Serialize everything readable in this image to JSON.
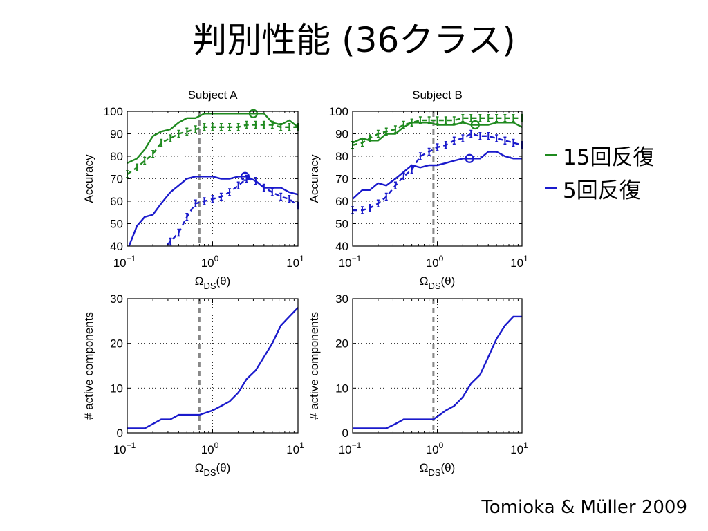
{
  "slide": {
    "title": "判別性能 (36クラス)",
    "citation": "Tomioka & Müller 2009"
  },
  "legend": [
    {
      "label": "15回反復",
      "color": "#1f8a1f"
    },
    {
      "label": "5回反復",
      "color": "#1a1acc"
    }
  ],
  "colors": {
    "green": "#1f8a1f",
    "blue": "#1a1acc",
    "threshold": "#888888"
  },
  "chart_data": [
    {
      "type": "line",
      "title": "Subject A",
      "xlabel": "Ω_DS(θ)",
      "ylabel": "Accuracy",
      "xscale": "log",
      "xlim": [
        0.1,
        10
      ],
      "ylim": [
        40,
        100
      ],
      "xticks": [
        "10^-1",
        "10^0",
        "10^1"
      ],
      "yticks": [
        40,
        50,
        60,
        70,
        80,
        90,
        100
      ],
      "threshold_x": 0.7,
      "grid": true,
      "series": [
        {
          "color": "green",
          "style": "solid",
          "x": [
            0.1,
            0.13,
            0.16,
            0.2,
            0.25,
            0.32,
            0.4,
            0.5,
            0.63,
            0.8,
            1.0,
            1.26,
            1.58,
            2.0,
            2.5,
            3.2,
            4.0,
            5.0,
            6.3,
            7.9,
            10.0
          ],
          "y": [
            77,
            79,
            83,
            89,
            91,
            92,
            95,
            97,
            97,
            99,
            99,
            99,
            99,
            99,
            99,
            99,
            99,
            95,
            94,
            96,
            93
          ],
          "marker": {
            "x": 3.0,
            "y": 99
          }
        },
        {
          "color": "green",
          "style": "dashed",
          "x": [
            0.1,
            0.13,
            0.16,
            0.2,
            0.25,
            0.32,
            0.4,
            0.5,
            0.63,
            0.8,
            1.0,
            1.26,
            1.58,
            2.0,
            2.5,
            3.2,
            4.0,
            5.0,
            6.3,
            7.9,
            10.0
          ],
          "y": [
            72,
            75,
            78,
            81,
            86,
            88,
            90,
            91,
            92,
            93,
            93,
            93,
            93,
            93,
            94,
            94,
            94,
            94,
            93,
            93,
            93
          ],
          "errorbars": true
        },
        {
          "color": "blue",
          "style": "solid",
          "x": [
            0.1,
            0.13,
            0.16,
            0.2,
            0.25,
            0.32,
            0.4,
            0.5,
            0.63,
            0.8,
            1.0,
            1.26,
            1.58,
            2.0,
            2.5,
            3.2,
            4.0,
            5.0,
            6.3,
            7.9,
            10.0
          ],
          "y": [
            38,
            49,
            53,
            54,
            59,
            64,
            67,
            70,
            71,
            71,
            71,
            70,
            70,
            71,
            71,
            69,
            66,
            66,
            66,
            64,
            63
          ],
          "marker": {
            "x": 2.4,
            "y": 71
          }
        },
        {
          "color": "blue",
          "style": "dashed",
          "x": [
            0.25,
            0.32,
            0.4,
            0.5,
            0.63,
            0.8,
            1.0,
            1.26,
            1.58,
            2.0,
            2.5,
            3.2,
            4.0,
            5.0,
            6.3,
            7.9,
            10.0
          ],
          "y": [
            38,
            42,
            46,
            53,
            59,
            60,
            61,
            62,
            64,
            67,
            70,
            69,
            66,
            64,
            62,
            61,
            58
          ],
          "errorbars": true
        }
      ]
    },
    {
      "type": "line",
      "title": "Subject B",
      "xlabel": "Ω_DS(θ)",
      "ylabel": "Accuracy",
      "xscale": "log",
      "xlim": [
        0.1,
        10
      ],
      "ylim": [
        40,
        100
      ],
      "xticks": [
        "10^-1",
        "10^0",
        "10^1"
      ],
      "yticks": [
        40,
        50,
        60,
        70,
        80,
        90,
        100
      ],
      "threshold_x": 0.9,
      "grid": true,
      "series": [
        {
          "color": "green",
          "style": "solid",
          "x": [
            0.1,
            0.13,
            0.16,
            0.2,
            0.25,
            0.32,
            0.4,
            0.5,
            0.63,
            0.8,
            1.0,
            1.26,
            1.58,
            2.0,
            2.5,
            3.2,
            4.0,
            5.0,
            6.3,
            7.9,
            10.0
          ],
          "y": [
            86,
            88,
            87,
            87,
            90,
            90,
            93,
            95,
            95,
            95,
            94,
            94,
            94,
            95,
            94,
            94,
            94,
            95,
            95,
            95,
            93
          ],
          "marker": {
            "x": 2.8,
            "y": 94
          }
        },
        {
          "color": "green",
          "style": "dashed",
          "x": [
            0.1,
            0.13,
            0.16,
            0.2,
            0.25,
            0.32,
            0.4,
            0.5,
            0.63,
            0.8,
            1.0,
            1.26,
            1.58,
            2.0,
            2.5,
            3.2,
            4.0,
            5.0,
            6.3,
            7.9,
            10.0
          ],
          "y": [
            85,
            86,
            88,
            90,
            91,
            92,
            94,
            95,
            96,
            96,
            96,
            96,
            96,
            97,
            97,
            97,
            97,
            97,
            97,
            97,
            97
          ],
          "errorbars": true
        },
        {
          "color": "blue",
          "style": "solid",
          "x": [
            0.1,
            0.13,
            0.16,
            0.2,
            0.25,
            0.32,
            0.4,
            0.5,
            0.63,
            0.8,
            1.0,
            1.26,
            1.58,
            2.0,
            2.5,
            3.2,
            4.0,
            5.0,
            6.3,
            7.9,
            10.0
          ],
          "y": [
            61,
            65,
            65,
            68,
            67,
            70,
            73,
            76,
            75,
            76,
            76,
            77,
            78,
            79,
            79,
            79,
            82,
            82,
            80,
            79,
            79
          ],
          "marker": {
            "x": 2.4,
            "y": 79
          }
        },
        {
          "color": "blue",
          "style": "dashed",
          "x": [
            0.1,
            0.13,
            0.16,
            0.2,
            0.25,
            0.32,
            0.4,
            0.5,
            0.63,
            0.8,
            1.0,
            1.26,
            1.58,
            2.0,
            2.5,
            3.2,
            4.0,
            5.0,
            6.3,
            7.9,
            10.0
          ],
          "y": [
            56,
            56,
            57,
            59,
            62,
            67,
            71,
            74,
            80,
            82,
            84,
            85,
            87,
            88,
            90,
            89,
            89,
            88,
            87,
            86,
            85
          ],
          "errorbars": true
        }
      ]
    },
    {
      "type": "line",
      "title": "",
      "xlabel": "Ω_DS(θ)",
      "ylabel": "# active components",
      "xscale": "log",
      "xlim": [
        0.1,
        10
      ],
      "ylim": [
        0,
        30
      ],
      "xticks": [
        "10^-1",
        "10^0",
        "10^1"
      ],
      "yticks": [
        0,
        10,
        20,
        30
      ],
      "threshold_x": 0.7,
      "grid": true,
      "series": [
        {
          "color": "blue",
          "style": "solid",
          "x": [
            0.1,
            0.16,
            0.25,
            0.32,
            0.4,
            0.5,
            0.7,
            1.0,
            1.26,
            1.58,
            2.0,
            2.5,
            3.2,
            4.0,
            5.0,
            6.3,
            7.9,
            10.0
          ],
          "y": [
            1,
            1,
            3,
            3,
            4,
            4,
            4,
            5,
            6,
            7,
            9,
            12,
            14,
            17,
            20,
            24,
            26,
            28
          ]
        }
      ]
    },
    {
      "type": "line",
      "title": "",
      "xlabel": "Ω_DS(θ)",
      "ylabel": "# active components",
      "xscale": "log",
      "xlim": [
        0.1,
        10
      ],
      "ylim": [
        0,
        30
      ],
      "xticks": [
        "10^-1",
        "10^0",
        "10^1"
      ],
      "yticks": [
        0,
        10,
        20,
        30
      ],
      "threshold_x": 0.9,
      "grid": true,
      "series": [
        {
          "color": "blue",
          "style": "solid",
          "x": [
            0.1,
            0.16,
            0.25,
            0.32,
            0.4,
            0.5,
            0.63,
            0.9,
            1.26,
            1.58,
            2.0,
            2.5,
            3.2,
            4.0,
            5.0,
            6.3,
            7.9,
            10.0
          ],
          "y": [
            1,
            1,
            1,
            2,
            3,
            3,
            3,
            3,
            5,
            6,
            8,
            11,
            13,
            17,
            21,
            24,
            26,
            26
          ]
        }
      ]
    }
  ]
}
